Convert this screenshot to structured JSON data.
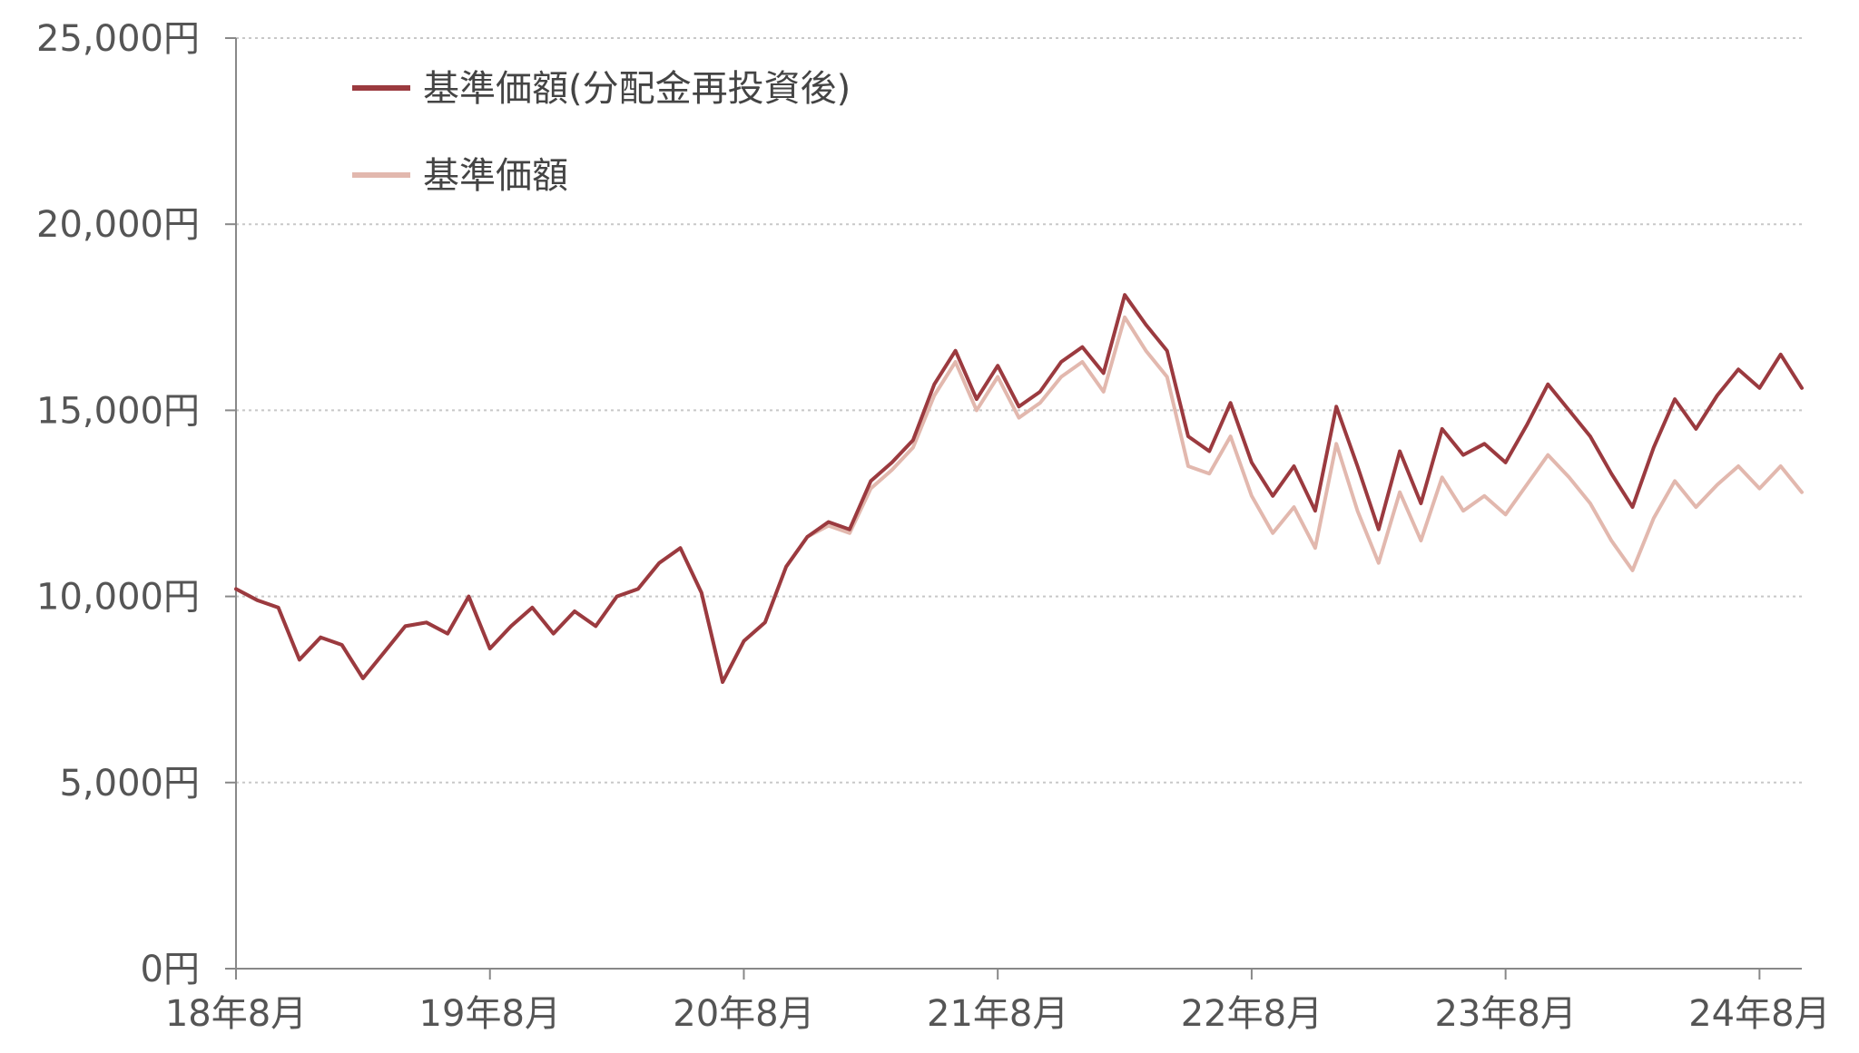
{
  "chart_data": {
    "type": "line",
    "title": "",
    "xlabel": "",
    "ylabel": "",
    "ylim": [
      0,
      25000
    ],
    "y_ticks": [
      0,
      5000,
      10000,
      15000,
      20000,
      25000
    ],
    "y_tick_labels": [
      "0円",
      "5,000円",
      "10,000円",
      "15,000円",
      "20,000円",
      "25,000円"
    ],
    "x_range": [
      "2018-08",
      "2024-10"
    ],
    "x_ticks": [
      "2018-08",
      "2019-08",
      "2020-08",
      "2021-08",
      "2022-08",
      "2023-08",
      "2024-08"
    ],
    "x_tick_labels": [
      "18年8月",
      "19年8月",
      "20年8月",
      "21年8月",
      "22年8月",
      "23年8月",
      "24年8月"
    ],
    "grid": "horizontal dotted",
    "legend_position": "top-left",
    "colors": {
      "reinvested": "#9b3a3f",
      "nav": "#e2b8ae",
      "axis": "#888888",
      "grid": "#c8c8c8"
    },
    "series": [
      {
        "name": "基準価額(分配金再投資後)",
        "key": "reinvested",
        "points": [
          [
            "2018-08",
            10200
          ],
          [
            "2018-09",
            9900
          ],
          [
            "2018-10",
            9700
          ],
          [
            "2018-11",
            8300
          ],
          [
            "2018-12",
            8900
          ],
          [
            "2019-01",
            8700
          ],
          [
            "2019-02",
            7800
          ],
          [
            "2019-03",
            8500
          ],
          [
            "2019-04",
            9200
          ],
          [
            "2019-05",
            9300
          ],
          [
            "2019-06",
            9000
          ],
          [
            "2019-07",
            10000
          ],
          [
            "2019-08",
            8600
          ],
          [
            "2019-09",
            9200
          ],
          [
            "2019-10",
            9700
          ],
          [
            "2019-11",
            9000
          ],
          [
            "2019-12",
            9600
          ],
          [
            "2020-01",
            9200
          ],
          [
            "2020-02",
            10000
          ],
          [
            "2020-03",
            10200
          ],
          [
            "2020-04",
            10900
          ],
          [
            "2020-05",
            11300
          ],
          [
            "2020-06",
            10100
          ],
          [
            "2020-07",
            7700
          ],
          [
            "2020-08",
            8800
          ],
          [
            "2020-09",
            9300
          ],
          [
            "2020-10",
            10800
          ],
          [
            "2020-11",
            11600
          ],
          [
            "2020-12",
            12000
          ],
          [
            "2021-01",
            11800
          ],
          [
            "2021-02",
            13100
          ],
          [
            "2021-03",
            13600
          ],
          [
            "2021-04",
            14200
          ],
          [
            "2021-05",
            15700
          ],
          [
            "2021-06",
            16600
          ],
          [
            "2021-07",
            15300
          ],
          [
            "2021-08",
            16200
          ],
          [
            "2021-09",
            15100
          ],
          [
            "2021-10",
            15500
          ],
          [
            "2021-11",
            16300
          ],
          [
            "2021-12",
            16700
          ],
          [
            "2022-01",
            16000
          ],
          [
            "2022-02",
            18100
          ],
          [
            "2022-03",
            17300
          ],
          [
            "2022-04",
            16600
          ],
          [
            "2022-05",
            14300
          ],
          [
            "2022-06",
            13900
          ],
          [
            "2022-07",
            15200
          ],
          [
            "2022-08",
            13600
          ],
          [
            "2022-09",
            12700
          ],
          [
            "2022-10",
            13500
          ],
          [
            "2022-11",
            12300
          ],
          [
            "2022-12",
            15100
          ],
          [
            "2023-01",
            13500
          ],
          [
            "2023-02",
            11800
          ],
          [
            "2023-03",
            13900
          ],
          [
            "2023-04",
            12500
          ],
          [
            "2023-05",
            14500
          ],
          [
            "2023-06",
            13800
          ],
          [
            "2023-07",
            14100
          ],
          [
            "2023-08",
            13600
          ],
          [
            "2023-09",
            14600
          ],
          [
            "2023-10",
            15700
          ],
          [
            "2023-11",
            15000
          ],
          [
            "2023-12",
            14300
          ],
          [
            "2024-01",
            13300
          ],
          [
            "2024-02",
            12400
          ],
          [
            "2024-03",
            14000
          ],
          [
            "2024-04",
            15300
          ],
          [
            "2024-05",
            14500
          ],
          [
            "2024-06",
            15400
          ],
          [
            "2024-07",
            16100
          ],
          [
            "2024-08",
            15600
          ],
          [
            "2024-09",
            16500
          ],
          [
            "2024-10",
            15600
          ]
        ]
      },
      {
        "name": "基準価額",
        "key": "nav",
        "points": [
          [
            "2018-08",
            10200
          ],
          [
            "2018-09",
            9900
          ],
          [
            "2018-10",
            9700
          ],
          [
            "2018-11",
            8300
          ],
          [
            "2018-12",
            8900
          ],
          [
            "2019-01",
            8700
          ],
          [
            "2019-02",
            7800
          ],
          [
            "2019-03",
            8500
          ],
          [
            "2019-04",
            9200
          ],
          [
            "2019-05",
            9300
          ],
          [
            "2019-06",
            9000
          ],
          [
            "2019-07",
            10000
          ],
          [
            "2019-08",
            8600
          ],
          [
            "2019-09",
            9200
          ],
          [
            "2019-10",
            9700
          ],
          [
            "2019-11",
            9000
          ],
          [
            "2019-12",
            9600
          ],
          [
            "2020-01",
            9200
          ],
          [
            "2020-02",
            10000
          ],
          [
            "2020-03",
            10200
          ],
          [
            "2020-04",
            10900
          ],
          [
            "2020-05",
            11300
          ],
          [
            "2020-06",
            10100
          ],
          [
            "2020-07",
            7700
          ],
          [
            "2020-08",
            8800
          ],
          [
            "2020-09",
            9300
          ],
          [
            "2020-10",
            10800
          ],
          [
            "2020-11",
            11600
          ],
          [
            "2020-12",
            11900
          ],
          [
            "2021-01",
            11700
          ],
          [
            "2021-02",
            12900
          ],
          [
            "2021-03",
            13400
          ],
          [
            "2021-04",
            14000
          ],
          [
            "2021-05",
            15400
          ],
          [
            "2021-06",
            16300
          ],
          [
            "2021-07",
            15000
          ],
          [
            "2021-08",
            15900
          ],
          [
            "2021-09",
            14800
          ],
          [
            "2021-10",
            15200
          ],
          [
            "2021-11",
            15900
          ],
          [
            "2021-12",
            16300
          ],
          [
            "2022-01",
            15500
          ],
          [
            "2022-02",
            17500
          ],
          [
            "2022-03",
            16600
          ],
          [
            "2022-04",
            15900
          ],
          [
            "2022-05",
            13500
          ],
          [
            "2022-06",
            13300
          ],
          [
            "2022-07",
            14300
          ],
          [
            "2022-08",
            12700
          ],
          [
            "2022-09",
            11700
          ],
          [
            "2022-10",
            12400
          ],
          [
            "2022-11",
            11300
          ],
          [
            "2022-12",
            14100
          ],
          [
            "2023-01",
            12300
          ],
          [
            "2023-02",
            10900
          ],
          [
            "2023-03",
            12800
          ],
          [
            "2023-04",
            11500
          ],
          [
            "2023-05",
            13200
          ],
          [
            "2023-06",
            12300
          ],
          [
            "2023-07",
            12700
          ],
          [
            "2023-08",
            12200
          ],
          [
            "2023-09",
            13000
          ],
          [
            "2023-10",
            13800
          ],
          [
            "2023-11",
            13200
          ],
          [
            "2023-12",
            12500
          ],
          [
            "2024-01",
            11500
          ],
          [
            "2024-02",
            10700
          ],
          [
            "2024-03",
            12100
          ],
          [
            "2024-04",
            13100
          ],
          [
            "2024-05",
            12400
          ],
          [
            "2024-06",
            13000
          ],
          [
            "2024-07",
            13500
          ],
          [
            "2024-08",
            12900
          ],
          [
            "2024-09",
            13500
          ],
          [
            "2024-10",
            12800
          ]
        ]
      }
    ]
  }
}
